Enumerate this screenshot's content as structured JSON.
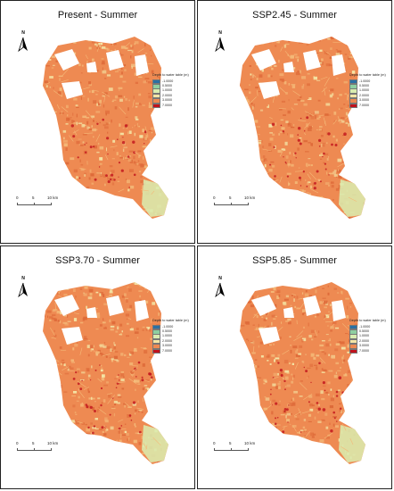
{
  "panels": [
    {
      "title": "Present - Summer"
    },
    {
      "title": "SSP2.45 - Summer"
    },
    {
      "title": "SSP3.70 - Summer"
    },
    {
      "title": "SSP5.85 - Summer"
    }
  ],
  "north_label": "N",
  "legend": {
    "title": "Depth to water table (m)",
    "items": [
      {
        "label": "-1.0000",
        "color": "#2b6fa3"
      },
      {
        "label": "0.5000",
        "color": "#8ecfa0"
      },
      {
        "label": "1.0000",
        "color": "#d9edb0"
      },
      {
        "label": "2.0000",
        "color": "#f4e6a6"
      },
      {
        "label": "3.0000",
        "color": "#ee8a52"
      },
      {
        "label": "7.0000",
        "color": "#c1121c"
      }
    ]
  },
  "scale_bar": {
    "labels": [
      "0",
      "5",
      "10 km"
    ]
  },
  "colors": {
    "land_base": "#ee8a52",
    "land_dark": "#de6a39",
    "land_light": "#f4b978",
    "shallow": "#d9edb0",
    "mid": "#f4e6a6",
    "deep": "#c1121c"
  }
}
